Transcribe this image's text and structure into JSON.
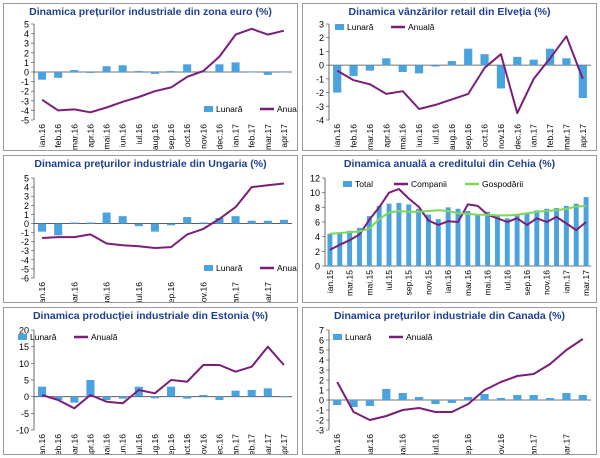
{
  "colors": {
    "bar": "#4aa3df",
    "line": "#7b1e7a",
    "companii": "#7b1e7a",
    "gospodarii": "#7fd857",
    "title": "#1f3f8f",
    "axis": "#000000"
  },
  "chart_data": [
    {
      "type": "bar+line",
      "title": "Dinamica prețurilor industriale din zona euro (%)",
      "legend": [
        "Lunară",
        "Anuală"
      ],
      "legend_position": "right-middle",
      "categories": [
        "ian.16",
        "feb.16",
        "mar.16",
        "apr.16",
        "mai.16",
        "iun.16",
        "iul.16",
        "aug.16",
        "sep.16",
        "oct.16",
        "nov.16",
        "dec.16",
        "ian.17",
        "feb.17",
        "mar.17",
        "apr.17"
      ],
      "tick_labels": [
        "ian.16",
        "feb.16",
        "mar.16",
        "apr.16",
        "mai.16",
        "iun.16",
        "iul.16",
        "aug.16",
        "sep.16",
        "oct.16",
        "nov.16",
        "dec.16",
        "ian.17",
        "feb.17",
        "mar.17",
        "apr.17"
      ],
      "series": [
        {
          "name": "Lunară",
          "kind": "bar",
          "values": [
            -0.8,
            -0.6,
            0.2,
            -0.1,
            0.6,
            0.7,
            0.1,
            -0.2,
            0.1,
            0.8,
            0.1,
            0.8,
            1.0,
            0.0,
            -0.3,
            0.0
          ]
        },
        {
          "name": "Anuală",
          "kind": "line",
          "values": [
            -2.9,
            -4.0,
            -3.9,
            -4.2,
            -3.7,
            -3.1,
            -2.6,
            -2.0,
            -1.6,
            -0.5,
            0.1,
            1.6,
            3.9,
            4.5,
            3.9,
            4.3
          ]
        }
      ],
      "ylim": [
        -5,
        5
      ],
      "yticks": [
        -5,
        -4,
        -3,
        -2,
        -1,
        0,
        1,
        2,
        3,
        4,
        5
      ]
    },
    {
      "type": "bar+line",
      "title": "Dinamica vânzărilor retail din Elveția (%)",
      "legend": [
        "Lunară",
        "Anuală"
      ],
      "legend_position": "top-left",
      "categories": [
        "ian.16",
        "feb.16",
        "mar.16",
        "apr.16",
        "mai.16",
        "iun.16",
        "iul.16",
        "aug.16",
        "sep.16",
        "oct.16",
        "nov.16",
        "dec.16",
        "ian.17",
        "feb.17",
        "mar.17",
        "apr.17"
      ],
      "tick_labels": [
        "ian.16",
        "feb.16",
        "mar.16",
        "apr.16",
        "mai.16",
        "iun.16",
        "iul.16",
        "aug.16",
        "sep.16",
        "oct.16",
        "nov.16",
        "dec.16",
        "ian.17",
        "feb.17",
        "mar.17",
        "apr.17"
      ],
      "series": [
        {
          "name": "Lunară",
          "kind": "bar",
          "values": [
            -2.0,
            -0.8,
            -0.4,
            0.5,
            -0.5,
            -0.6,
            -0.1,
            0.3,
            1.2,
            0.8,
            -1.7,
            0.6,
            0.4,
            1.2,
            0.5,
            -2.4
          ]
        },
        {
          "name": "Anuală",
          "kind": "line",
          "values": [
            -0.4,
            -1.1,
            -1.4,
            -2.1,
            -1.9,
            -3.2,
            -2.9,
            -2.5,
            -2.1,
            -0.2,
            0.8,
            -3.5,
            -1.0,
            0.5,
            2.1,
            -1.0
          ]
        }
      ],
      "ylim": [
        -4,
        3
      ],
      "yticks": [
        -4,
        -3,
        -2,
        -1,
        0,
        1,
        2,
        3
      ]
    },
    {
      "type": "bar+line",
      "title": "Dinamica prețurilor industriale din Ungaria (%)",
      "legend": [
        "Lunară",
        "Anuală"
      ],
      "legend_position": "bottom-right",
      "categories": [
        "ian.16",
        "feb.16",
        "mar.16",
        "apr.16",
        "mai.16",
        "iun.16",
        "iul.16",
        "aug.16",
        "sep.16",
        "oct.16",
        "nov.16",
        "dec.16",
        "ian.17",
        "feb.17",
        "mar.17",
        "apr.17"
      ],
      "tick_labels": [
        "ian.16",
        "mar.16",
        "mai.16",
        "iul.16",
        "sep.16",
        "nov.16",
        "ian.17",
        "mar.17"
      ],
      "series": [
        {
          "name": "Lunară",
          "kind": "bar",
          "values": [
            -0.9,
            -1.3,
            0.1,
            0.1,
            1.2,
            0.8,
            -0.3,
            -0.9,
            -0.2,
            0.7,
            0.1,
            0.6,
            0.8,
            0.3,
            0.3,
            0.4
          ]
        },
        {
          "name": "Anuală",
          "kind": "line",
          "values": [
            -1.6,
            -1.5,
            -1.5,
            -1.2,
            -2.2,
            -2.4,
            -2.5,
            -2.7,
            -2.6,
            -1.2,
            -0.6,
            0.5,
            1.8,
            4.0,
            4.2,
            4.4
          ]
        }
      ],
      "ylim": [
        -6,
        5
      ],
      "yticks": [
        -6,
        -5,
        -4,
        -3,
        -2,
        -1,
        0,
        1,
        2,
        3,
        4,
        5
      ]
    },
    {
      "type": "bar+line",
      "title": "Dinamica anuală a creditului din Cehia (%)",
      "legend": [
        "Total",
        "Companii",
        "Gospodării"
      ],
      "legend_position": "top",
      "categories": [
        "ian.15",
        "feb.15",
        "mar.15",
        "apr.15",
        "mai.15",
        "iun.15",
        "iul.15",
        "aug.15",
        "sep.15",
        "oct.15",
        "nov.15",
        "dec.15",
        "ian.16",
        "feb.16",
        "mar.16",
        "apr.16",
        "mai.16",
        "iun.16",
        "iul.16",
        "aug.16",
        "sep.16",
        "oct.16",
        "nov.16",
        "dec.16",
        "ian.17",
        "feb.17",
        "mar.17"
      ],
      "tick_labels": [
        "ian.15",
        "mar.15",
        "mai.15",
        "iul.15",
        "sep.15",
        "nov.15",
        "ian.16",
        "mar.16",
        "mai.16",
        "iul.16",
        "sep.16",
        "nov.16",
        "ian.17",
        "mar.17"
      ],
      "series": [
        {
          "name": "Total",
          "kind": "bar",
          "values": [
            4.4,
            4.6,
            4.8,
            5.2,
            6.8,
            8.2,
            8.5,
            8.6,
            8.4,
            7.8,
            7.0,
            6.4,
            8.0,
            7.8,
            7.5,
            7.0,
            7.4,
            6.8,
            6.5,
            6.9,
            7.3,
            7.6,
            7.8,
            7.9,
            8.2,
            8.5,
            9.4
          ]
        },
        {
          "name": "Companii",
          "kind": "line",
          "values": [
            2.2,
            2.9,
            3.5,
            4.3,
            6.3,
            8.0,
            10.0,
            10.5,
            9.2,
            8.1,
            6.2,
            5.6,
            6.1,
            6.0,
            8.4,
            8.2,
            7.0,
            6.5,
            6.0,
            6.5,
            5.6,
            6.5,
            6.0,
            6.7,
            5.8,
            4.9,
            6.0
          ]
        },
        {
          "name": "Gospodării",
          "kind": "line",
          "values": [
            4.4,
            4.5,
            4.6,
            4.7,
            5.1,
            6.4,
            7.3,
            7.5,
            7.4,
            7.4,
            7.5,
            7.6,
            7.5,
            7.2,
            7.1,
            7.0,
            7.0,
            6.9,
            6.9,
            7.0,
            7.2,
            7.4,
            7.5,
            7.6,
            7.8,
            8.1,
            8.2
          ]
        }
      ],
      "ylim": [
        0,
        12
      ],
      "yticks": [
        0,
        2,
        4,
        6,
        8,
        10,
        12
      ]
    },
    {
      "type": "bar+line",
      "title": "Dinamica producției industriale din Estonia (%)",
      "legend": [
        "Lunară",
        "Anuală"
      ],
      "legend_position": "top-left",
      "categories": [
        "ian.16",
        "feb.16",
        "mar.16",
        "apr.16",
        "mai.16",
        "iun.16",
        "iul.16",
        "aug.16",
        "sep.16",
        "oct.16",
        "nov.16",
        "dec.16",
        "ian.17",
        "feb.17",
        "mar.17",
        "apr.17"
      ],
      "tick_labels": [
        "ian.16",
        "feb.16",
        "mar.16",
        "apr.16",
        "mai.16",
        "iun.16",
        "iul.16",
        "aug.16",
        "sep.16",
        "oct.16",
        "nov.16",
        "dec.16",
        "ian.17",
        "feb.17",
        "mar.17",
        "apr.17"
      ],
      "series": [
        {
          "name": "Lunară",
          "kind": "bar",
          "values": [
            3.0,
            -1.0,
            -1.8,
            5.0,
            -1.0,
            -0.6,
            3.0,
            -0.5,
            3.0,
            -0.6,
            0.5,
            -1.0,
            1.8,
            2.0,
            2.5,
            0.0
          ]
        },
        {
          "name": "Anuală",
          "kind": "line",
          "values": [
            0.5,
            -1.0,
            -3.5,
            0.5,
            -1.5,
            -2.0,
            2.0,
            1.0,
            5.0,
            4.5,
            9.5,
            9.5,
            7.5,
            9.0,
            15.0,
            9.5
          ]
        }
      ],
      "ylim": [
        -10,
        20
      ],
      "yticks": [
        -10,
        -5,
        0,
        5,
        10,
        15,
        20
      ]
    },
    {
      "type": "bar+line",
      "title": "Dinamica prețurilor industriale din Canada (%)",
      "legend": [
        "Lunară",
        "Anuală"
      ],
      "legend_position": "top-left",
      "categories": [
        "ian.16",
        "feb.16",
        "mar.16",
        "apr.16",
        "mai.16",
        "iun.16",
        "iul.16",
        "aug.16",
        "sep.16",
        "oct.16",
        "nov.16",
        "dec.16",
        "ian.17",
        "feb.17",
        "mar.17",
        "apr.17"
      ],
      "tick_labels": [
        "ian.16",
        "mar.16",
        "mai.16",
        "iul.16",
        "sep.16",
        "nov.16",
        "ian.17",
        "mar.17"
      ],
      "series": [
        {
          "name": "Lunară",
          "kind": "bar",
          "values": [
            -0.5,
            -0.7,
            -0.6,
            1.1,
            0.7,
            0.3,
            -0.4,
            -0.3,
            0.3,
            0.6,
            0.2,
            0.5,
            0.5,
            0.2,
            0.7,
            0.5
          ]
        },
        {
          "name": "Anuală",
          "kind": "line",
          "values": [
            1.8,
            -1.2,
            -2.0,
            -1.6,
            -1.0,
            -0.8,
            -1.2,
            -1.2,
            -0.4,
            1.0,
            1.8,
            2.4,
            2.6,
            3.6,
            5.0,
            6.1
          ]
        }
      ],
      "ylim": [
        -3,
        7
      ],
      "yticks": [
        -3,
        -2,
        -1,
        0,
        1,
        2,
        3,
        4,
        5,
        6,
        7
      ]
    }
  ]
}
